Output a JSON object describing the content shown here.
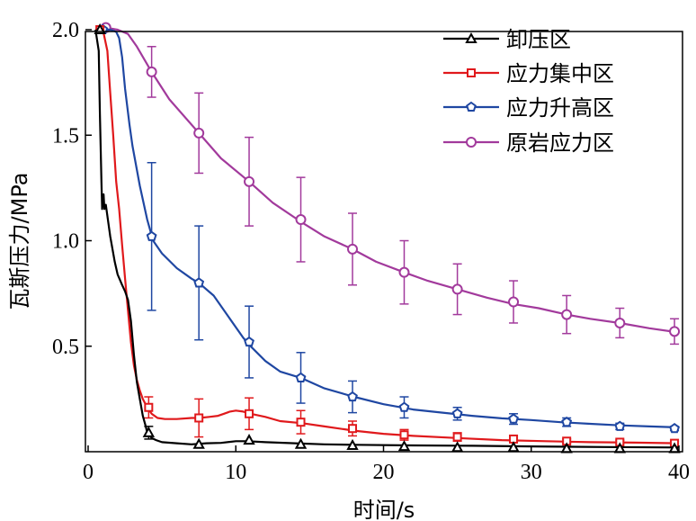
{
  "chart_data": {
    "type": "line",
    "xlabel": "时间/s",
    "ylabel": "瓦斯压力/MPa",
    "xlim": [
      0,
      40
    ],
    "ylim": [
      0,
      2.0
    ],
    "x_ticks": [
      0,
      10,
      20,
      30,
      40
    ],
    "x_tick_labels": [
      "0",
      "10",
      "20",
      "30",
      "40"
    ],
    "y_ticks": [
      0.5,
      1.0,
      1.5,
      2.0
    ],
    "y_tick_labels": [
      "0.5",
      "1.0",
      "1.5",
      "2.0"
    ],
    "grid": false,
    "legend_position": "top-right",
    "series": [
      {
        "name": "卸压区",
        "color": "#000000",
        "marker": "triangle",
        "curve": [
          [
            0.5,
            2.0
          ],
          [
            0.72,
            1.9
          ],
          [
            0.8,
            1.6
          ],
          [
            0.9,
            1.28
          ],
          [
            0.95,
            1.15
          ],
          [
            1.0,
            1.2
          ],
          [
            1.05,
            1.22
          ],
          [
            1.1,
            1.15
          ],
          [
            1.2,
            1.17
          ],
          [
            1.5,
            1.02
          ],
          [
            1.8,
            0.9
          ],
          [
            2.0,
            0.84
          ],
          [
            2.3,
            0.79
          ],
          [
            2.5,
            0.76
          ],
          [
            2.7,
            0.72
          ],
          [
            2.9,
            0.62
          ],
          [
            3.1,
            0.46
          ],
          [
            3.3,
            0.33
          ],
          [
            3.5,
            0.25
          ],
          [
            3.7,
            0.17
          ],
          [
            3.9,
            0.12
          ],
          [
            4.0,
            0.09
          ],
          [
            4.3,
            0.065
          ],
          [
            4.6,
            0.055
          ],
          [
            5.0,
            0.045
          ],
          [
            6.0,
            0.04
          ],
          [
            7.0,
            0.035
          ],
          [
            8.0,
            0.04
          ],
          [
            9.0,
            0.042
          ],
          [
            10.0,
            0.05
          ],
          [
            10.8,
            0.05
          ],
          [
            12,
            0.045
          ],
          [
            14,
            0.04
          ],
          [
            16,
            0.035
          ],
          [
            18,
            0.033
          ],
          [
            22,
            0.03
          ],
          [
            26,
            0.028
          ],
          [
            30,
            0.025
          ],
          [
            35,
            0.022
          ],
          [
            40,
            0.02
          ]
        ],
        "markers": [
          [
            0.8,
            2.0
          ],
          [
            4.1,
            0.09
          ],
          [
            7.5,
            0.035
          ],
          [
            10.9,
            0.055
          ],
          [
            14.4,
            0.035
          ],
          [
            17.9,
            0.03
          ],
          [
            21.4,
            0.025
          ],
          [
            25.0,
            0.02
          ],
          [
            28.8,
            0.02
          ],
          [
            32.4,
            0.015
          ],
          [
            36.0,
            0.015
          ],
          [
            39.7,
            0.015
          ]
        ],
        "error": [
          0,
          0.03,
          0,
          0,
          0,
          0,
          0,
          0,
          0,
          0,
          0,
          0
        ]
      },
      {
        "name": "应力集中区",
        "color": "#e0191c",
        "marker": "square",
        "curve": [
          [
            0.5,
            2.0
          ],
          [
            1.0,
            2.0
          ],
          [
            1.3,
            1.9
          ],
          [
            1.5,
            1.7
          ],
          [
            1.7,
            1.5
          ],
          [
            1.9,
            1.28
          ],
          [
            2.1,
            1.15
          ],
          [
            2.3,
            0.98
          ],
          [
            2.5,
            0.82
          ],
          [
            2.7,
            0.67
          ],
          [
            2.9,
            0.52
          ],
          [
            3.1,
            0.41
          ],
          [
            3.3,
            0.34
          ],
          [
            3.5,
            0.29
          ],
          [
            3.7,
            0.25
          ],
          [
            4.0,
            0.21
          ],
          [
            4.3,
            0.18
          ],
          [
            4.7,
            0.16
          ],
          [
            5.2,
            0.155
          ],
          [
            6.0,
            0.155
          ],
          [
            7.0,
            0.16
          ],
          [
            7.5,
            0.16
          ],
          [
            8.2,
            0.165
          ],
          [
            8.8,
            0.17
          ],
          [
            9.2,
            0.18
          ],
          [
            9.6,
            0.19
          ],
          [
            10.0,
            0.195
          ],
          [
            10.5,
            0.19
          ],
          [
            11.0,
            0.18
          ],
          [
            12,
            0.165
          ],
          [
            13,
            0.145
          ],
          [
            14.5,
            0.135
          ],
          [
            16,
            0.12
          ],
          [
            18,
            0.1
          ],
          [
            20,
            0.085
          ],
          [
            22,
            0.075
          ],
          [
            25,
            0.065
          ],
          [
            28,
            0.055
          ],
          [
            31,
            0.05
          ],
          [
            34,
            0.045
          ],
          [
            37,
            0.043
          ],
          [
            40,
            0.04
          ]
        ],
        "markers": [
          [
            0.8,
            2.0
          ],
          [
            4.1,
            0.21
          ],
          [
            7.5,
            0.16
          ],
          [
            10.9,
            0.18
          ],
          [
            14.4,
            0.14
          ],
          [
            17.9,
            0.11
          ],
          [
            21.4,
            0.08
          ],
          [
            25.0,
            0.07
          ],
          [
            28.8,
            0.06
          ],
          [
            32.4,
            0.05
          ],
          [
            36.0,
            0.045
          ],
          [
            39.7,
            0.04
          ]
        ],
        "error": [
          0,
          0.05,
          0.09,
          0.075,
          0.055,
          0.035,
          0.025,
          0.02,
          0.015,
          0.01,
          0.01,
          0.01
        ]
      },
      {
        "name": "应力升高区",
        "color": "#1f47a2",
        "marker": "pentagon",
        "curve": [
          [
            0.5,
            2.0
          ],
          [
            1.5,
            2.0
          ],
          [
            1.9,
            1.99
          ],
          [
            2.1,
            1.96
          ],
          [
            2.3,
            1.87
          ],
          [
            2.5,
            1.72
          ],
          [
            2.8,
            1.55
          ],
          [
            3.0,
            1.45
          ],
          [
            3.5,
            1.26
          ],
          [
            4.0,
            1.1
          ],
          [
            4.4,
            1.0
          ],
          [
            5.0,
            0.94
          ],
          [
            6.0,
            0.87
          ],
          [
            7.0,
            0.82
          ],
          [
            7.5,
            0.8
          ],
          [
            8.5,
            0.74
          ],
          [
            9.5,
            0.64
          ],
          [
            10.5,
            0.54
          ],
          [
            11.0,
            0.5
          ],
          [
            12.0,
            0.43
          ],
          [
            13.0,
            0.38
          ],
          [
            14.4,
            0.35
          ],
          [
            16,
            0.3
          ],
          [
            18,
            0.26
          ],
          [
            20,
            0.225
          ],
          [
            22,
            0.2
          ],
          [
            24,
            0.185
          ],
          [
            26,
            0.17
          ],
          [
            28,
            0.158
          ],
          [
            30,
            0.15
          ],
          [
            32,
            0.14
          ],
          [
            34,
            0.132
          ],
          [
            36,
            0.125
          ],
          [
            38,
            0.12
          ],
          [
            40,
            0.115
          ]
        ],
        "markers": [
          [
            1.0,
            2.0
          ],
          [
            4.3,
            1.02
          ],
          [
            7.5,
            0.8
          ],
          [
            10.9,
            0.52
          ],
          [
            14.4,
            0.35
          ],
          [
            17.9,
            0.26
          ],
          [
            21.4,
            0.21
          ],
          [
            25.0,
            0.18
          ],
          [
            28.8,
            0.155
          ],
          [
            32.4,
            0.14
          ],
          [
            36.0,
            0.12
          ],
          [
            39.7,
            0.11
          ]
        ],
        "error": [
          0,
          0.35,
          0.27,
          0.17,
          0.12,
          0.075,
          0.05,
          0.03,
          0.025,
          0.02,
          0.015,
          0.01
        ]
      },
      {
        "name": "原岩应力区",
        "color": "#a23a9c",
        "marker": "circle",
        "curve": [
          [
            0.5,
            2.0
          ],
          [
            1.2,
            2.01
          ],
          [
            2.0,
            2.0
          ],
          [
            2.7,
            1.98
          ],
          [
            3.3,
            1.92
          ],
          [
            4.3,
            1.8
          ],
          [
            5.5,
            1.67
          ],
          [
            7.5,
            1.51
          ],
          [
            9.0,
            1.39
          ],
          [
            10.9,
            1.28
          ],
          [
            12.5,
            1.18
          ],
          [
            14.4,
            1.09
          ],
          [
            16,
            1.02
          ],
          [
            17.9,
            0.96
          ],
          [
            19.5,
            0.9
          ],
          [
            21.4,
            0.85
          ],
          [
            23,
            0.81
          ],
          [
            25.0,
            0.77
          ],
          [
            27,
            0.73
          ],
          [
            28.8,
            0.7
          ],
          [
            30.5,
            0.68
          ],
          [
            32.4,
            0.65
          ],
          [
            34,
            0.63
          ],
          [
            36.0,
            0.61
          ],
          [
            38,
            0.585
          ],
          [
            40,
            0.565
          ]
        ],
        "markers": [
          [
            1.2,
            2.01
          ],
          [
            4.3,
            1.8
          ],
          [
            7.5,
            1.51
          ],
          [
            10.9,
            1.28
          ],
          [
            14.4,
            1.1
          ],
          [
            17.9,
            0.96
          ],
          [
            21.4,
            0.85
          ],
          [
            25.0,
            0.77
          ],
          [
            28.8,
            0.71
          ],
          [
            32.4,
            0.65
          ],
          [
            36.0,
            0.61
          ],
          [
            39.7,
            0.57
          ]
        ],
        "error": [
          0,
          0.12,
          0.19,
          0.21,
          0.2,
          0.17,
          0.15,
          0.12,
          0.1,
          0.09,
          0.07,
          0.06
        ]
      }
    ]
  }
}
